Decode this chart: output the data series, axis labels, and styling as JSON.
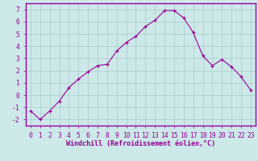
{
  "x": [
    0,
    1,
    2,
    3,
    4,
    5,
    6,
    7,
    8,
    9,
    10,
    11,
    12,
    13,
    14,
    15,
    16,
    17,
    18,
    19,
    20,
    21,
    22,
    23
  ],
  "y": [
    -1.3,
    -2.0,
    -1.3,
    -0.5,
    0.6,
    1.3,
    1.9,
    2.4,
    2.5,
    3.6,
    4.3,
    4.8,
    5.6,
    6.1,
    6.9,
    6.9,
    6.3,
    5.1,
    3.2,
    2.4,
    2.9,
    2.3,
    1.5,
    0.4
  ],
  "xlabel": "Windchill (Refroidissement éolien,°C)",
  "ylim": [
    -2.5,
    7.5
  ],
  "xlim": [
    -0.5,
    23.5
  ],
  "yticks": [
    -2,
    -1,
    0,
    1,
    2,
    3,
    4,
    5,
    6,
    7
  ],
  "xticks": [
    0,
    1,
    2,
    3,
    4,
    5,
    6,
    7,
    8,
    9,
    10,
    11,
    12,
    13,
    14,
    15,
    16,
    17,
    18,
    19,
    20,
    21,
    22,
    23
  ],
  "line_color": "#990099",
  "marker": "+",
  "bg_color": "#cce8e8",
  "grid_color": "#aacccc",
  "tick_label_color": "#990099",
  "xlabel_color": "#990099",
  "xlabel_fontsize": 6.0,
  "tick_fontsize": 5.8,
  "spine_color": "#9900aa"
}
